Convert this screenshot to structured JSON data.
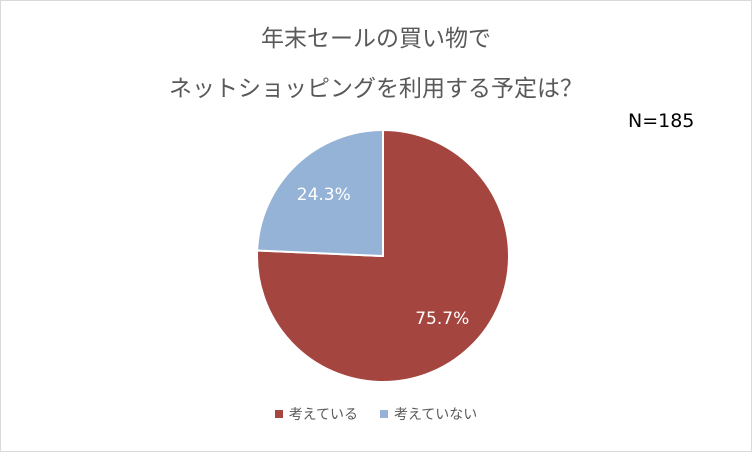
{
  "chart_data": {
    "type": "pie",
    "title": [
      "年末セールの買い物で",
      "ネットショッピングを利用する予定は？"
    ],
    "annotation": "N=185",
    "slices": [
      {
        "label": "考えている",
        "value": 75.7,
        "data_label": "75.7%",
        "color": "#a5453f"
      },
      {
        "label": "考えていない",
        "value": 24.3,
        "data_label": "24.3%",
        "color": "#95b3d7"
      }
    ],
    "start_angle_deg": 0,
    "direction": "clockwise",
    "legend_position": "bottom"
  }
}
